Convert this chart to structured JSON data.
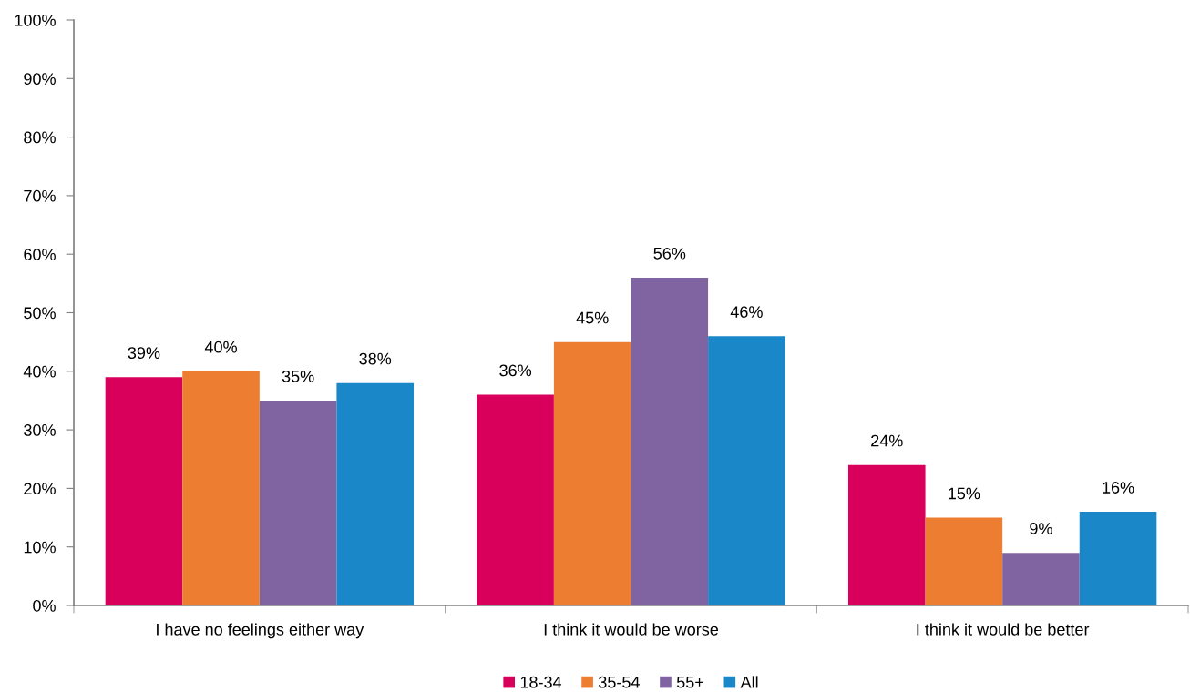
{
  "chart_data": {
    "type": "bar",
    "categories": [
      "I have no feelings either way",
      "I think it would be worse",
      "I think it would be better"
    ],
    "series": [
      {
        "name": "18-34",
        "color": "#d9005b",
        "values": [
          39,
          36,
          24
        ],
        "value_labels": [
          "39%",
          "36%",
          "24%"
        ]
      },
      {
        "name": "35-54",
        "color": "#ed7d31",
        "values": [
          40,
          45,
          15
        ],
        "value_labels": [
          "40%",
          "45%",
          "15%"
        ]
      },
      {
        "name": "55+",
        "color": "#8064a2",
        "values": [
          35,
          56,
          9
        ],
        "value_labels": [
          "35%",
          "56%",
          "9%"
        ]
      },
      {
        "name": "All",
        "color": "#1a87c8",
        "values": [
          38,
          46,
          16
        ],
        "value_labels": [
          "38%",
          "46%",
          "16%"
        ]
      }
    ],
    "ylim": [
      0,
      100
    ],
    "yticks": [
      {
        "value": 0,
        "label": "0%"
      },
      {
        "value": 10,
        "label": "10%"
      },
      {
        "value": 20,
        "label": "20%"
      },
      {
        "value": 30,
        "label": "30%"
      },
      {
        "value": 40,
        "label": "40%"
      },
      {
        "value": 50,
        "label": "50%"
      },
      {
        "value": 60,
        "label": "60%"
      },
      {
        "value": 70,
        "label": "70%"
      },
      {
        "value": 80,
        "label": "80%"
      },
      {
        "value": 90,
        "label": "90%"
      },
      {
        "value": 100,
        "label": "100%"
      }
    ],
    "grid": false,
    "legend": "bottom"
  }
}
